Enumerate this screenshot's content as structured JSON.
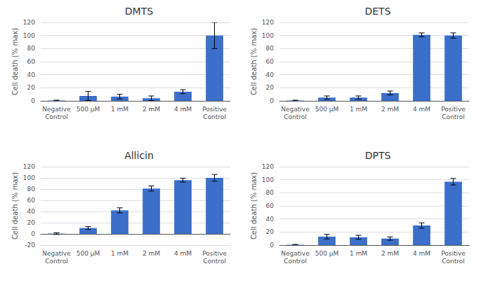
{
  "chart_data": [
    {
      "type": "bar",
      "title": "DMTS",
      "categories": [
        "Negative\nControl",
        "500 μM",
        "1 mM",
        "2 mM",
        "4 mM",
        "Positive\nControl"
      ],
      "values": [
        0.5,
        7.5,
        6.5,
        4.0,
        14.0,
        100.0
      ],
      "errors": [
        0.5,
        7.0,
        3.5,
        3.5,
        3.0,
        20.0
      ],
      "color": "#3B6FCA",
      "ylabel": "Cell death (% max)",
      "ylim": [
        0,
        120
      ],
      "yticks": [
        0,
        20,
        40,
        60,
        80,
        100,
        120
      ],
      "grid": true
    },
    {
      "type": "bar",
      "title": "DETS",
      "categories": [
        "Negative\nControl",
        "500 μM",
        "1 mM",
        "2 mM",
        "4 mM",
        "Positive\nControl"
      ],
      "values": [
        0.5,
        5.0,
        5.0,
        12.0,
        101.0,
        100.0
      ],
      "errors": [
        0.5,
        2.5,
        2.5,
        3.0,
        3.0,
        4.0
      ],
      "color": "#3B6FCA",
      "ylabel": "Cell death (% max)",
      "ylim": [
        0,
        120
      ],
      "yticks": [
        0,
        20,
        40,
        60,
        80,
        100,
        120
      ],
      "grid": true
    },
    {
      "type": "bar",
      "title": "Allicin",
      "categories": [
        "Negative\nControl",
        "500 μM",
        "1 mM",
        "2 mM",
        "4 mM",
        "Positive\nControl"
      ],
      "values": [
        0.5,
        10.5,
        42.0,
        81.0,
        96.0,
        100.0
      ],
      "errors": [
        1.5,
        2.5,
        4.5,
        4.5,
        3.5,
        6.0
      ],
      "color": "#3B6FCA",
      "ylabel": "Cell death (% max)",
      "ylim": [
        -20,
        120
      ],
      "yticks": [
        -20,
        0,
        20,
        40,
        60,
        80,
        100,
        120
      ],
      "grid": true
    },
    {
      "type": "bar",
      "title": "DPTS",
      "categories": [
        "Negative\nControl",
        "500 μM",
        "1 mM",
        "2 mM",
        "4 mM",
        "Positive\nControl"
      ],
      "values": [
        0.5,
        13.0,
        12.0,
        10.0,
        30.0,
        97.0
      ],
      "errors": [
        0.5,
        3.5,
        3.0,
        2.5,
        4.0,
        5.0
      ],
      "color": "#3B6FCA",
      "ylabel": "Cell death (% max)",
      "ylim": [
        0,
        120
      ],
      "yticks": [
        0,
        20,
        40,
        60,
        80,
        100,
        120
      ],
      "grid": true
    }
  ]
}
